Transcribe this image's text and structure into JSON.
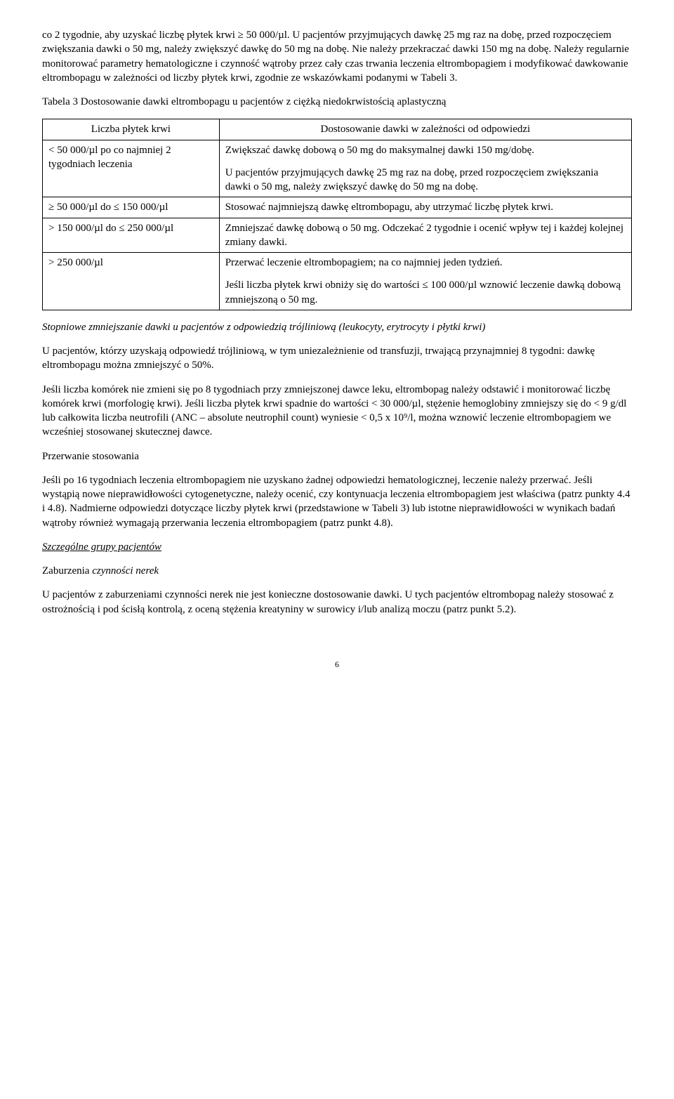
{
  "para1": "co 2 tygodnie, aby uzyskać liczbę płytek krwi ≥ 50 000/µl. U pacjentów przyjmujących dawkę 25 mg raz na dobę, przed rozpoczęciem zwiększania dawki o 50 mg, należy zwiększyć dawkę do 50 mg na dobę. Nie należy przekraczać dawki 150 mg na dobę. Należy regularnie monitorować parametry hematologiczne i czynność wątroby przez cały czas trwania leczenia eltrombopagiem i modyfikować dawkowanie eltrombopagu w zależności od liczby płytek krwi, zgodnie ze wskazówkami podanymi w Tabeli 3.",
  "para2": "Tabela 3 Dostosowanie dawki eltrombopagu u pacjentów z ciężką niedokrwistością aplastyczną",
  "table": {
    "header_left": "Liczba płytek krwi",
    "header_right": "Dostosowanie dawki w zależności od odpowiedzi",
    "rows": [
      {
        "left": "< 50 000/µl po co najmniej 2 tygodniach leczenia",
        "right_parts": [
          "Zwiększać dawkę dobową o 50 mg do maksymalnej dawki 150 mg/dobę.",
          "U pacjentów przyjmujących dawkę 25 mg raz na dobę, przed rozpoczęciem zwiększania dawki o 50 mg, należy zwiększyć dawkę do 50 mg na dobę."
        ]
      },
      {
        "left": "≥ 50 000/µl do ≤ 150 000/µl",
        "right_parts": [
          "Stosować najmniejszą dawkę eltrombopagu, aby utrzymać liczbę płytek krwi."
        ]
      },
      {
        "left": "> 150 000/µl do ≤ 250 000/µl",
        "right_parts": [
          "Zmniejszać dawkę dobową o 50 mg. Odczekać 2 tygodnie i ocenić wpływ tej i każdej kolejnej zmiany dawki."
        ]
      },
      {
        "left": "> 250 000/µl",
        "right_parts": [
          "Przerwać leczenie eltrombopagiem; na co najmniej jeden tydzień.",
          "Jeśli liczba płytek krwi obniży się do wartości ≤ 100 000/µl wznowić leczenie dawką dobową zmniejszoną o 50 mg."
        ]
      }
    ]
  },
  "para3_italic_part": "Stopniowe zmniejszanie dawki u pacjentów z odpowiedzią trójliniową (leukocyty, erytrocyty i płytki krwi)",
  "para4": "U pacjentów, którzy uzyskają odpowiedź trójliniową, w tym uniezależnienie od transfuzji, trwającą przynajmniej 8 tygodni: dawkę eltrombopagu można zmniejszyć o 50%.",
  "para5": "Jeśli liczba komórek nie zmieni się po 8 tygodniach przy zmniejszonej dawce leku, eltrombopag należy odstawić i monitorować liczbę komórek krwi (morfologię krwi). Jeśli liczba płytek krwi spadnie do wartości < 30 000/µl, stężenie hemoglobiny zmniejszy się do < 9 g/dl lub całkowita liczba neutrofili (ANC – absolute neutrophil count) wyniesie < 0,5 x 10⁹/l, można wznowić leczenie eltrombopagiem we wcześniej stosowanej skutecznej dawce.",
  "heading1": "Przerwanie stosowania",
  "para6": "Jeśli po 16 tygodniach leczenia eltrombopagiem nie uzyskano żadnej odpowiedzi hematologicznej, leczenie należy przerwać. Jeśli wystąpią nowe nieprawidłowości cytogenetyczne, należy ocenić, czy kontynuacja leczenia eltrombopagiem jest właściwa (patrz punkty 4.4 i 4.8). Nadmierne odpowiedzi dotyczące liczby płytek krwi (przedstawione w Tabeli 3) lub istotne nieprawidłowości w wynikach badań wątroby również wymagają przerwania leczenia eltrombopagiem (patrz punkt 4.8).",
  "heading2": "Szczególne grupy pacjentów",
  "heading3_plain": "Zaburzenia",
  "heading3_italic": " czynności nerek",
  "para7": "U pacjentów z zaburzeniami czynności nerek nie jest konieczne dostosowanie dawki. U tych pacjentów eltrombopag należy stosować z ostrożnością i pod ścisłą kontrolą, z oceną stężenia kreatyniny w surowicy i/lub analizą moczu (patrz punkt 5.2).",
  "page_number": "6"
}
